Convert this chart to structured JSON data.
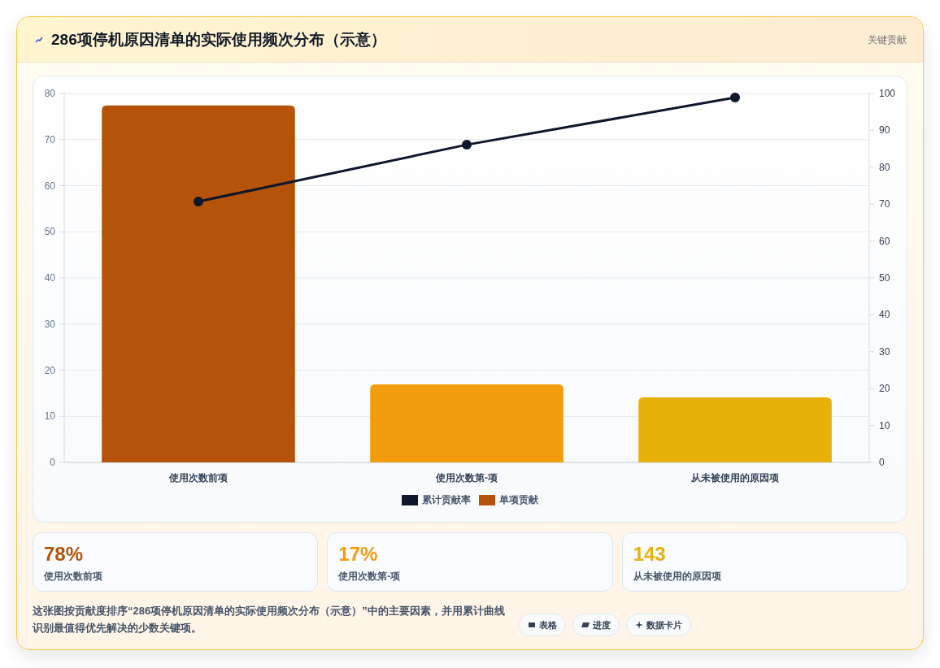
{
  "chart_data": [
    {
      "type": "bar",
      "title": "286项停机原因清单的实际使用频次分布（示意）",
      "subtitle": "关键贡献",
      "categories": [
        "使用次数前项",
        "使用次数第-项",
        "从未被使用的原因项"
      ],
      "series": [
        {
          "name": "累计贡献率",
          "type": "line",
          "axis": "y2",
          "color": "#0f172a",
          "values": [
            70.7,
            86.1,
            98.9
          ]
        },
        {
          "name": "单项贡献",
          "type": "bar",
          "colors": [
            "#b45309",
            "#f39c0d",
            "#e8b10a"
          ],
          "values": [
            77.4,
            16.9,
            14.1
          ]
        }
      ],
      "ylim": [
        0,
        80
      ],
      "yticks": [
        0,
        10,
        20,
        30,
        40,
        50,
        60,
        70,
        80
      ],
      "y2lim": [
        0,
        100
      ],
      "y2ticks": [
        0,
        10,
        20,
        30,
        40,
        50,
        60,
        70,
        80,
        90,
        100
      ],
      "grid": "y",
      "legend": "bottom",
      "marker": "circle"
    },
    {
      "type": "other",
      "title": "78%",
      "subtitle": "使用次数前项",
      "color": "#b45309"
    },
    {
      "type": "other",
      "title": "17%",
      "subtitle": "使用次数第-项",
      "color": "#f39c0d"
    },
    {
      "type": "other",
      "title": "143",
      "subtitle": "从未被使用的原因项",
      "color": "#e8b10a"
    },
    {
      "type": "other",
      "annotations": [
        "这张图按贡献度排序“286项停机原因清单的实际使用频次分布（示意）”中的主要因素，并用累计曲线识别最值得优先解决的少数关键项。",
        "表格",
        "进度",
        "数据卡片"
      ]
    }
  ]
}
